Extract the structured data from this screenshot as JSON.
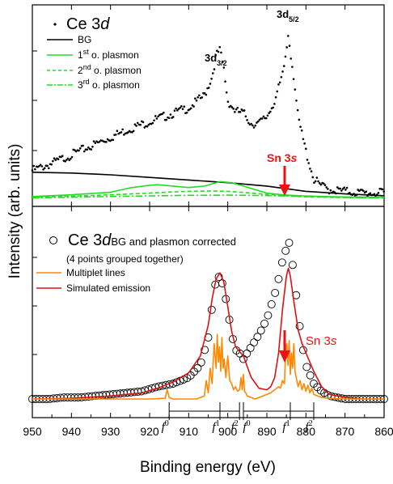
{
  "chart_data": [
    {
      "type": "scatter",
      "panel": "top",
      "x_range": [
        950,
        860
      ],
      "title_parts": {
        "main": "Ce 3",
        "italic": "d"
      },
      "peak_labels": [
        {
          "text": "3d",
          "sub": "3/2",
          "x": 901.5
        },
        {
          "text": "3d",
          "sub": "5/2",
          "x": 884.5
        }
      ],
      "arrow_label": {
        "main": "Sn 3",
        "italic": "s",
        "x": 884.5
      },
      "legend": {
        "bg": "BG",
        "p1_sup": "st",
        "p1": "1",
        "p1_rest": " o. plasmon",
        "p2_sup": "nd",
        "p2": "2",
        "p2_rest": " o. plasmon",
        "p3_sup": "rd",
        "p3": "3",
        "p3_rest": " o. plasmon"
      },
      "series": [
        {
          "name": "Ce 3d",
          "style": "dots",
          "color": "#000000",
          "x": [
            950,
            945,
            940,
            935,
            930,
            925,
            920,
            915,
            910,
            906,
            904,
            903,
            902,
            901,
            900,
            898,
            896,
            894,
            892,
            890,
            888,
            886,
            885,
            884.5,
            884,
            883,
            882,
            880,
            878,
            876,
            874,
            870,
            865,
            860
          ],
          "y": [
            0.16,
            0.2,
            0.25,
            0.3,
            0.35,
            0.4,
            0.44,
            0.48,
            0.52,
            0.59,
            0.7,
            0.82,
            0.85,
            0.74,
            0.56,
            0.5,
            0.49,
            0.43,
            0.43,
            0.47,
            0.56,
            0.7,
            0.85,
            0.95,
            0.85,
            0.68,
            0.46,
            0.27,
            0.11,
            0.07,
            0.05,
            0.04,
            0.03,
            0.03
          ]
        },
        {
          "name": "BG",
          "style": "solid",
          "color": "#000000",
          "x": [
            950,
            940,
            930,
            920,
            910,
            900,
            890,
            885,
            880,
            870,
            860
          ],
          "y": [
            0.15,
            0.145,
            0.135,
            0.12,
            0.105,
            0.09,
            0.07,
            0.055,
            0.04,
            0.025,
            0.015
          ]
        },
        {
          "name": "1st o. plasmon",
          "style": "solid",
          "color": "#22dd22",
          "x": [
            950,
            940,
            930,
            925,
            920,
            918,
            914,
            910,
            906,
            902,
            899,
            896,
            893,
            890,
            886,
            882,
            876,
            870,
            860
          ],
          "y": [
            0.01,
            0.02,
            0.035,
            0.06,
            0.075,
            0.078,
            0.07,
            0.062,
            0.07,
            0.096,
            0.09,
            0.07,
            0.05,
            0.03,
            0.02,
            0.015,
            0.01,
            0.008,
            0.006
          ]
        },
        {
          "name": "2nd o. plasmon",
          "style": "dashed",
          "color": "#22dd22",
          "x": [
            950,
            940,
            930,
            920,
            915,
            910,
            905,
            900,
            895,
            890,
            885,
            880,
            870,
            860
          ],
          "y": [
            0.005,
            0.012,
            0.02,
            0.03,
            0.036,
            0.04,
            0.042,
            0.04,
            0.032,
            0.022,
            0.014,
            0.008,
            0.004,
            0.002
          ]
        },
        {
          "name": "3rd o. plasmon",
          "style": "dashdot",
          "color": "#22dd22",
          "x": [
            950,
            940,
            930,
            920,
            910,
            900,
            890,
            880,
            870,
            860
          ],
          "y": [
            0.003,
            0.006,
            0.01,
            0.014,
            0.017,
            0.018,
            0.016,
            0.01,
            0.005,
            0.002
          ]
        }
      ]
    },
    {
      "type": "line",
      "panel": "bottom",
      "x_range": [
        950,
        860
      ],
      "legend": {
        "circles_main": "Ce 3",
        "circles_italic": "d",
        "circles_rest": "BG and plasmon corrected",
        "circles_note": "(4 points grouped together)",
        "multiplet": "Multiplet lines",
        "simulated": "Simulated emission"
      },
      "arrow_label": {
        "main": "Sn 3",
        "italic": "s",
        "x": 884.5
      },
      "f_labels": [
        {
          "text": "f",
          "sup": "0",
          "x": 915
        },
        {
          "text": "f",
          "sup": "1",
          "x": 902
        },
        {
          "text": "f",
          "sup": "2",
          "x": 897
        },
        {
          "text": "f",
          "sup": "0",
          "x": 896
        },
        {
          "text": "f",
          "sup": "1",
          "x": 884
        },
        {
          "text": "f",
          "sup": "2",
          "x": 878
        }
      ],
      "series": [
        {
          "name": "Ce 3d BG and plasmon corrected",
          "style": "circles",
          "color": "#000000",
          "x": [
            950,
            946,
            942,
            938,
            934,
            930,
            926,
            922,
            918,
            914,
            910,
            907,
            905,
            904,
            903,
            902,
            901,
            900,
            899,
            898,
            897,
            896,
            894,
            892,
            890,
            889,
            888,
            887,
            886,
            885,
            884.5,
            884,
            883,
            882,
            881,
            880,
            878,
            876,
            874,
            872,
            870,
            866,
            862,
            860
          ],
          "y": [
            0.0,
            0.0,
            0.01,
            0.01,
            0.02,
            0.03,
            0.04,
            0.05,
            0.08,
            0.1,
            0.14,
            0.22,
            0.4,
            0.6,
            0.78,
            0.8,
            0.72,
            0.58,
            0.42,
            0.32,
            0.3,
            0.26,
            0.34,
            0.42,
            0.52,
            0.6,
            0.68,
            0.78,
            0.9,
            0.98,
            1.04,
            0.98,
            0.8,
            0.55,
            0.36,
            0.22,
            0.1,
            0.05,
            0.02,
            0.01,
            0.0,
            0.0,
            0.0,
            0.0
          ]
        },
        {
          "name": "Simulated emission",
          "style": "solid",
          "color": "#dd1111",
          "x": [
            950,
            940,
            930,
            922,
            918,
            914,
            910,
            907,
            905,
            904,
            903,
            902,
            901,
            900,
            899,
            898,
            896,
            894,
            892,
            890,
            889,
            888,
            887,
            886,
            885,
            884.5,
            884,
            883,
            882,
            881,
            880,
            878,
            876,
            874,
            870,
            865,
            860
          ],
          "y": [
            0.0,
            0.005,
            0.02,
            0.04,
            0.07,
            0.11,
            0.17,
            0.28,
            0.48,
            0.65,
            0.78,
            0.82,
            0.76,
            0.6,
            0.44,
            0.34,
            0.28,
            0.14,
            0.07,
            0.06,
            0.08,
            0.14,
            0.3,
            0.58,
            0.8,
            0.85,
            0.8,
            0.62,
            0.45,
            0.36,
            0.3,
            0.18,
            0.08,
            0.03,
            0.01,
            0.0,
            0.0
          ]
        },
        {
          "name": "Multiplet lines",
          "style": "solid",
          "color": "#ff8800",
          "x": [
            950,
            930,
            920,
            916,
            915.5,
            915,
            914.5,
            914,
            908,
            906,
            905.5,
            905,
            904.5,
            904,
            903.5,
            903,
            902.7,
            902.4,
            902.1,
            901.8,
            901.5,
            901.2,
            900.9,
            900.5,
            900,
            899.5,
            899,
            898.5,
            898,
            897.5,
            897,
            896.6,
            896.3,
            896,
            895.7,
            895.4,
            895,
            894,
            893,
            892,
            891,
            890,
            889,
            888,
            887,
            886.5,
            886,
            885.5,
            885.2,
            884.9,
            884.6,
            884.3,
            884,
            883.7,
            883.4,
            883.1,
            882.8,
            882.5,
            882,
            881.5,
            881,
            880.5,
            880,
            879.5,
            879,
            878.5,
            878,
            877,
            876,
            874,
            870,
            860
          ],
          "y": [
            0,
            0,
            0,
            0.005,
            0.06,
            0.01,
            0.005,
            0,
            0,
            0.02,
            0.12,
            0.04,
            0.2,
            0.1,
            0.36,
            0.2,
            0.42,
            0.24,
            0.34,
            0.18,
            0.4,
            0.2,
            0.26,
            0.14,
            0.28,
            0.12,
            0.1,
            0.06,
            0.08,
            0.05,
            0.06,
            0.14,
            0.06,
            0.16,
            0.05,
            0.04,
            0.02,
            0.01,
            0,
            0.01,
            0.02,
            0.03,
            0.04,
            0.06,
            0.08,
            0.07,
            0.12,
            0.1,
            0.32,
            0.36,
            0.22,
            0.38,
            0.16,
            0.3,
            0.2,
            0.36,
            0.18,
            0.14,
            0.08,
            0.12,
            0.06,
            0.1,
            0.05,
            0.09,
            0.04,
            0.07,
            0.03,
            0.02,
            0.01,
            0.005,
            0,
            0
          ]
        }
      ]
    }
  ],
  "x_ticks": [
    "950",
    "940",
    "930",
    "920",
    "910",
    "900",
    "890",
    "880",
    "870",
    "860"
  ],
  "xlabel": "Binding energy (eV)",
  "ylabel": "Intensity (arb. units)"
}
